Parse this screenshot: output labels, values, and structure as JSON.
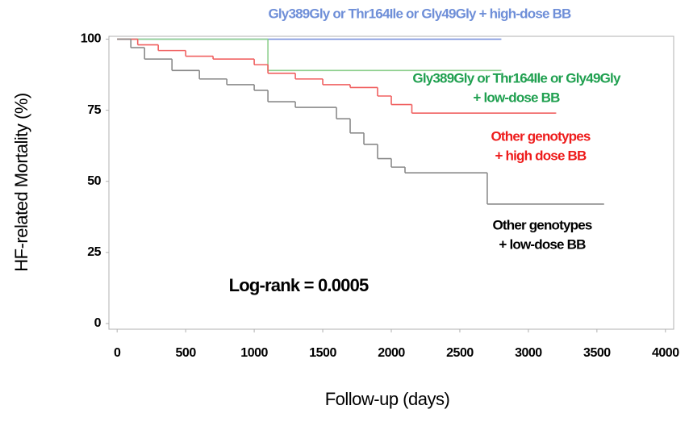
{
  "chart_data": {
    "type": "step",
    "x_label": "Follow-up (days)",
    "y_label": "HF-related Mortality (%)",
    "xlim": [
      -60,
      4060
    ],
    "ylim": [
      -2,
      101
    ],
    "xticks": [
      0,
      500,
      1000,
      1500,
      2000,
      2500,
      3000,
      3500,
      4000
    ],
    "yticks": [
      0,
      25,
      50,
      75,
      100
    ],
    "series": [
      {
        "name": "Gly389Gly or Thr164Ile or Gly49Gly + high-dose BB",
        "color": "#7a92dc",
        "x": [
          0,
          2800
        ],
        "values": [
          100,
          100
        ]
      },
      {
        "name": "Gly389Gly or Thr164Ile or Gly49Gly + low-dose BB",
        "color": "#8fd08f",
        "x": [
          0,
          1100,
          2800
        ],
        "values": [
          100,
          89,
          89
        ]
      },
      {
        "name": "Other genotypes + high dose BB",
        "color": "#f06060",
        "x": [
          0,
          150,
          300,
          500,
          700,
          1000,
          1100,
          1300,
          1500,
          1700,
          1900,
          2000,
          2150,
          3200
        ],
        "values": [
          100,
          98,
          96,
          94,
          93,
          91,
          88,
          86,
          84,
          83,
          80,
          77,
          74,
          74
        ]
      },
      {
        "name": "Other genotypes + low-dose BB",
        "color": "#8a8a8a",
        "x": [
          0,
          100,
          200,
          400,
          600,
          800,
          1000,
          1100,
          1300,
          1600,
          1700,
          1800,
          1900,
          2000,
          2100,
          2700,
          3550
        ],
        "values": [
          100,
          97,
          93,
          89,
          86,
          84,
          82,
          78,
          76,
          72,
          67,
          63,
          58,
          55,
          53,
          42,
          42
        ]
      }
    ],
    "annotations": [
      {
        "lines": [
          "Gly389Gly or Thr164Ile or Gly49Gly + high-dose BB"
        ],
        "color": "#6f8fd8"
      },
      {
        "lines": [
          "Gly389Gly or Thr164Ile or Gly49Gly",
          "+  low-dose BB"
        ],
        "color": "#20a050"
      },
      {
        "lines": [
          "Other genotypes",
          "+  high dose BB"
        ],
        "color": "#ee1c1c"
      },
      {
        "lines": [
          "Other genotypes",
          "+ low-dose BB"
        ],
        "color": "#000000"
      },
      {
        "lines": [
          "Log-rank  = 0.0005"
        ],
        "color": "#000000"
      }
    ]
  }
}
